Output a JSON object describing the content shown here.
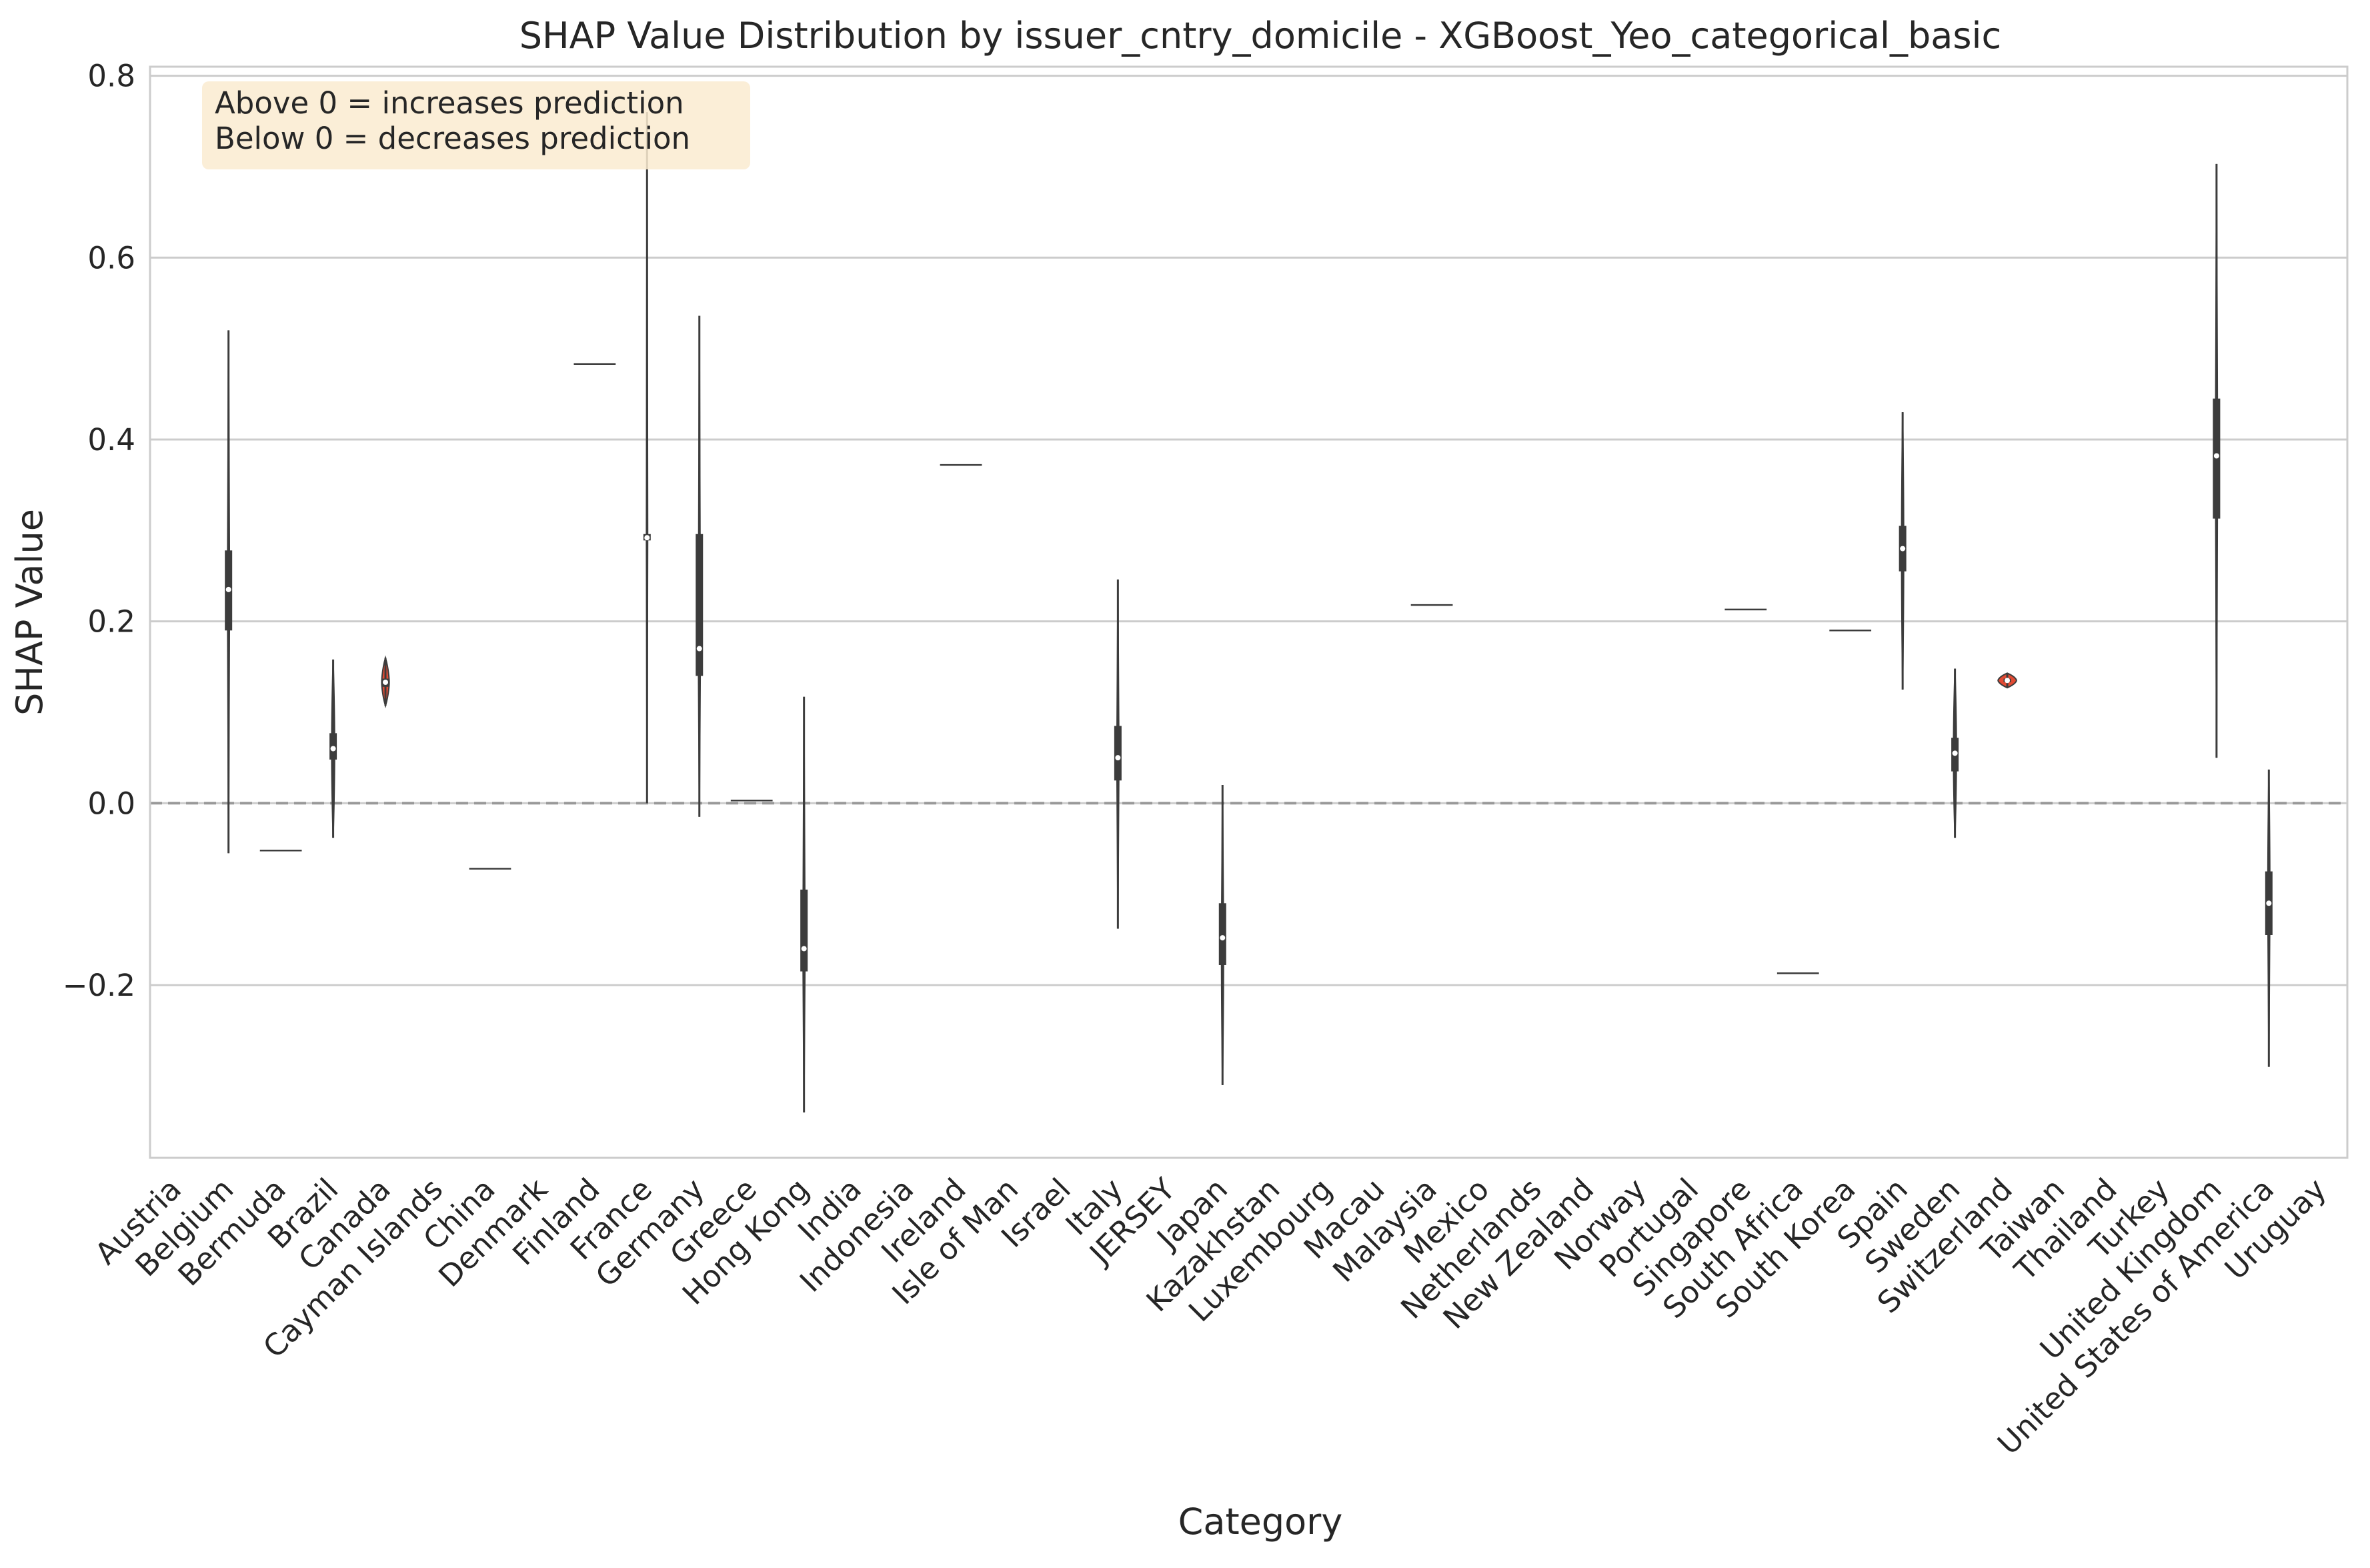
{
  "chart_data": {
    "type": "violin",
    "title": "SHAP Value Distribution by issuer_cntry_domicile - XGBoost_Yeo_categorical_basic",
    "xlabel": "Category",
    "ylabel": "SHAP Value",
    "ylim": [
      -0.39,
      0.81
    ],
    "yticks": [
      -0.2,
      0.0,
      0.2,
      0.4,
      0.6,
      0.8
    ],
    "ytick_labels": [
      "−0.2",
      "0.0",
      "0.2",
      "0.4",
      "0.6",
      "0.8"
    ],
    "grid": true,
    "reference_line": 0,
    "annotation": {
      "lines": [
        "Above 0 = increases prediction",
        "Below 0 = decreases prediction"
      ],
      "placement": "top-left"
    },
    "colors": {
      "violin": "#e24a33",
      "box": "#3c3c3c",
      "grid": "#cccccc",
      "zero_line": "#999999",
      "annotation_bg": "#faebd0"
    },
    "categories": [
      "Austria",
      "Belgium",
      "Bermuda",
      "Brazil",
      "Canada",
      "Cayman Islands",
      "China",
      "Denmark",
      "Finland",
      "France",
      "Germany",
      "Greece",
      "Hong Kong",
      "India",
      "Indonesia",
      "Ireland",
      "Isle of Man",
      "Israel",
      "Italy",
      "JERSEY",
      "Japan",
      "Kazakhstan",
      "Luxembourg",
      "Macau",
      "Malaysia",
      "Mexico",
      "Netherlands",
      "New Zealand",
      "Norway",
      "Portugal",
      "Singapore",
      "South Africa",
      "South Korea",
      "Spain",
      "Sweden",
      "Switzerland",
      "Taiwan",
      "Thailand",
      "Turkey",
      "United Kingdom",
      "United States of America",
      "Uruguay"
    ],
    "violins": [
      {
        "category": "Belgium",
        "min": -0.055,
        "max": 0.52,
        "q1": 0.19,
        "median": 0.235,
        "q3": 0.278,
        "hw": 0.25
      },
      {
        "category": "Bermuda",
        "single": -0.052
      },
      {
        "category": "Brazil",
        "min": -0.038,
        "max": 0.158,
        "q1": 0.048,
        "median": 0.06,
        "q3": 0.077,
        "hw": 0.35
      },
      {
        "category": "Canada",
        "min": 0.107,
        "max": 0.16,
        "q1": 0.128,
        "median": 0.133,
        "q3": 0.137,
        "hw": 0.9
      },
      {
        "category": "China",
        "single": -0.072
      },
      {
        "category": "Finland",
        "single": 0.483
      },
      {
        "category": "France",
        "min": 0.0,
        "max": 0.76,
        "q1": 0.289,
        "median": 0.292,
        "q3": 0.296,
        "hw": 0.15
      },
      {
        "category": "Germany",
        "min": -0.015,
        "max": 0.536,
        "q1": 0.14,
        "median": 0.17,
        "q3": 0.296,
        "hw": 0.25
      },
      {
        "category": "Greece",
        "single": 0.003
      },
      {
        "category": "Hong Kong",
        "min": -0.34,
        "max": 0.117,
        "q1": -0.185,
        "median": -0.16,
        "q3": -0.095,
        "hw": 0.25
      },
      {
        "category": "Ireland",
        "single": 0.372
      },
      {
        "category": "Italy",
        "min": -0.138,
        "max": 0.246,
        "q1": 0.025,
        "median": 0.05,
        "q3": 0.085,
        "hw": 0.25
      },
      {
        "category": "Japan",
        "min": -0.31,
        "max": 0.02,
        "q1": -0.178,
        "median": -0.148,
        "q3": -0.11,
        "hw": 0.25
      },
      {
        "category": "Malaysia",
        "single": 0.218
      },
      {
        "category": "Singapore",
        "single": 0.213
      },
      {
        "category": "South Africa",
        "single": -0.187
      },
      {
        "category": "South Korea",
        "single": 0.19
      },
      {
        "category": "Spain",
        "min": 0.125,
        "max": 0.43,
        "q1": 0.255,
        "median": 0.28,
        "q3": 0.305,
        "hw": 0.25
      },
      {
        "category": "Sweden",
        "min": -0.038,
        "max": 0.148,
        "q1": 0.035,
        "median": 0.055,
        "q3": 0.072,
        "hw": 0.35
      },
      {
        "category": "Switzerland",
        "min": 0.127,
        "max": 0.143,
        "q1": 0.133,
        "median": 0.135,
        "q3": 0.137,
        "hw": 2.2
      },
      {
        "category": "United Kingdom",
        "min": 0.05,
        "max": 0.703,
        "q1": 0.313,
        "median": 0.382,
        "q3": 0.445,
        "hw": 0.25
      },
      {
        "category": "United States of America",
        "min": -0.29,
        "max": 0.037,
        "q1": -0.145,
        "median": -0.11,
        "q3": -0.075,
        "hw": 0.25
      }
    ]
  }
}
